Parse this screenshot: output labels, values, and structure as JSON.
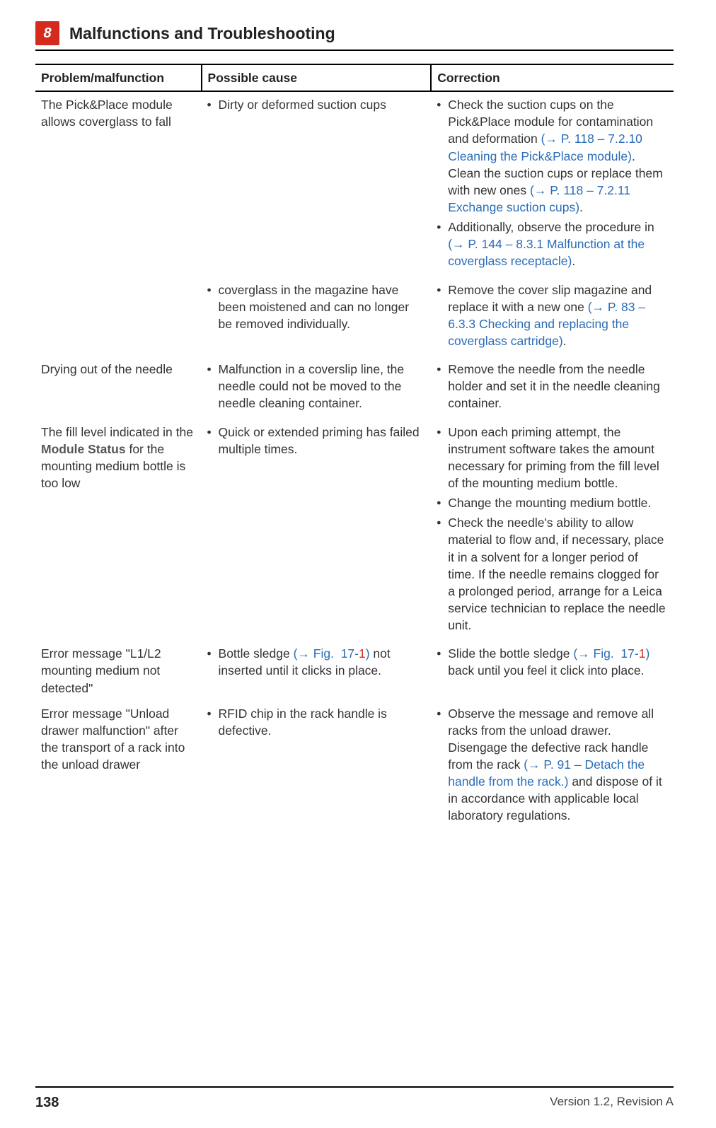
{
  "header": {
    "chapter_number": "8",
    "title": "Malfunctions and Troubleshooting"
  },
  "table": {
    "headers": [
      "Problem/malfunction",
      "Possible cause",
      "Correction"
    ]
  },
  "rows": {
    "r1": {
      "problem": "The Pick&Place module allows coverglass to fall",
      "cause1": "Dirty or deformed suction cups",
      "corr1a_pre": "Check the suction cups on the Pick&Place module for contamination and deformation ",
      "corr1a_ref": "(→ P. 118 – 7.2.10 Cleaning the Pick&Place module)",
      "corr1a_mid": ". Clean the suction cups or replace them with new ones ",
      "corr1a_ref2": "(→ P. 118 – 7.2.11 Exchange suction cups)",
      "corr1a_post": ".",
      "corr1b_pre": "Additionally, observe the procedure in ",
      "corr1b_ref": "(→ P. 144 – 8.3.1 Malfunction at the coverglass receptacle)",
      "corr1b_post": "."
    },
    "r1b": {
      "cause": "coverglass in the magazine have been moistened and can no longer be removed individually.",
      "corr_pre": "Remove the cover slip magazine and replace it with a new one ",
      "corr_ref": "(→ P. 83 – 6.3.3 Checking and replacing the coverglass cartridge)",
      "corr_post": "."
    },
    "r2": {
      "problem": "Drying out of the needle",
      "cause": "Malfunction in a coverslip line, the needle could not be moved to the needle cleaning container.",
      "corr": "Remove the needle from the needle holder and set it in the needle cleaning container."
    },
    "r3": {
      "problem_pre": "The fill level indicated in the ",
      "problem_term": "Module Status",
      "problem_post": " for the mounting medium bottle is too low",
      "cause": "Quick or extended priming has failed multiple times.",
      "corr_a": "Upon each priming attempt, the instrument software takes the amount necessary for priming from the fill level of the mounting medium bottle.",
      "corr_b": "Change the mounting medium bottle.",
      "corr_c": "Check the needle's ability to allow material to flow and, if necessary, place it in a solvent for a longer period of time. If the needle remains clogged for a prolonged period, arrange for a Leica service technician to replace the needle unit."
    },
    "r4": {
      "problem": "Error message \"L1/L2 mounting medium not detected\"",
      "cause_pre": "Bottle sledge ",
      "cause_ref_a": "(→ Fig.  17",
      "cause_ref_dash": "-",
      "cause_ref_num": "1",
      "cause_ref_close": ")",
      "cause_post": " not inserted until it clicks in place.",
      "corr_pre": "Slide the bottle sledge ",
      "corr_ref_a": "(→ Fig.  17",
      "corr_ref_dash": "-",
      "corr_ref_num": "1",
      "corr_ref_close": ")",
      "corr_post": " back until you feel it click into place."
    },
    "r5": {
      "problem": "Error message \"Unload drawer malfunction\" after the transport of a rack into the unload drawer",
      "cause": "RFID chip in the rack handle is defective.",
      "corr_pre": "Observe the message and remove all racks from the unload drawer. Disengage the defective rack handle from the rack ",
      "corr_ref": "(→ P. 91 – Detach the handle from the rack.)",
      "corr_post": " and dispose of it in accordance with applicable local laboratory regulations."
    }
  },
  "footer": {
    "page": "138",
    "version": "Version 1.2, Revision A"
  }
}
